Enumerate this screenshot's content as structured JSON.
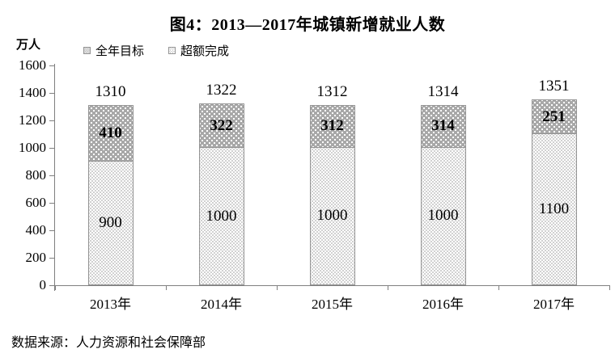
{
  "chart_data": {
    "type": "bar",
    "stacked": true,
    "title": "图4：2013—2017年城镇新增就业人数",
    "ylabel": "万人",
    "xlabel": "",
    "categories": [
      "2013年",
      "2014年",
      "2015年",
      "2016年",
      "2017年"
    ],
    "series": [
      {
        "name": "全年目标",
        "values": [
          900,
          1000,
          1000,
          1000,
          1100
        ]
      },
      {
        "name": "超额完成",
        "values": [
          410,
          322,
          312,
          314,
          251
        ]
      }
    ],
    "totals": [
      1310,
      1322,
      1312,
      1314,
      1351
    ],
    "ylim": [
      0,
      1600
    ],
    "yticks": [
      0,
      200,
      400,
      600,
      800,
      1000,
      1200,
      1400,
      1600
    ],
    "grid": false,
    "legend_position": "top-left",
    "source": "数据来源：人力资源和社会保障部",
    "colors": {
      "target_fill": "#ffffff",
      "target_dot": "#c2c2c2",
      "exceeded_fill": "#a8a8a8",
      "exceeded_dot": "#ffffff",
      "bar_border": "#949494",
      "axis": "#7f7f7f",
      "text": "#000000"
    }
  }
}
